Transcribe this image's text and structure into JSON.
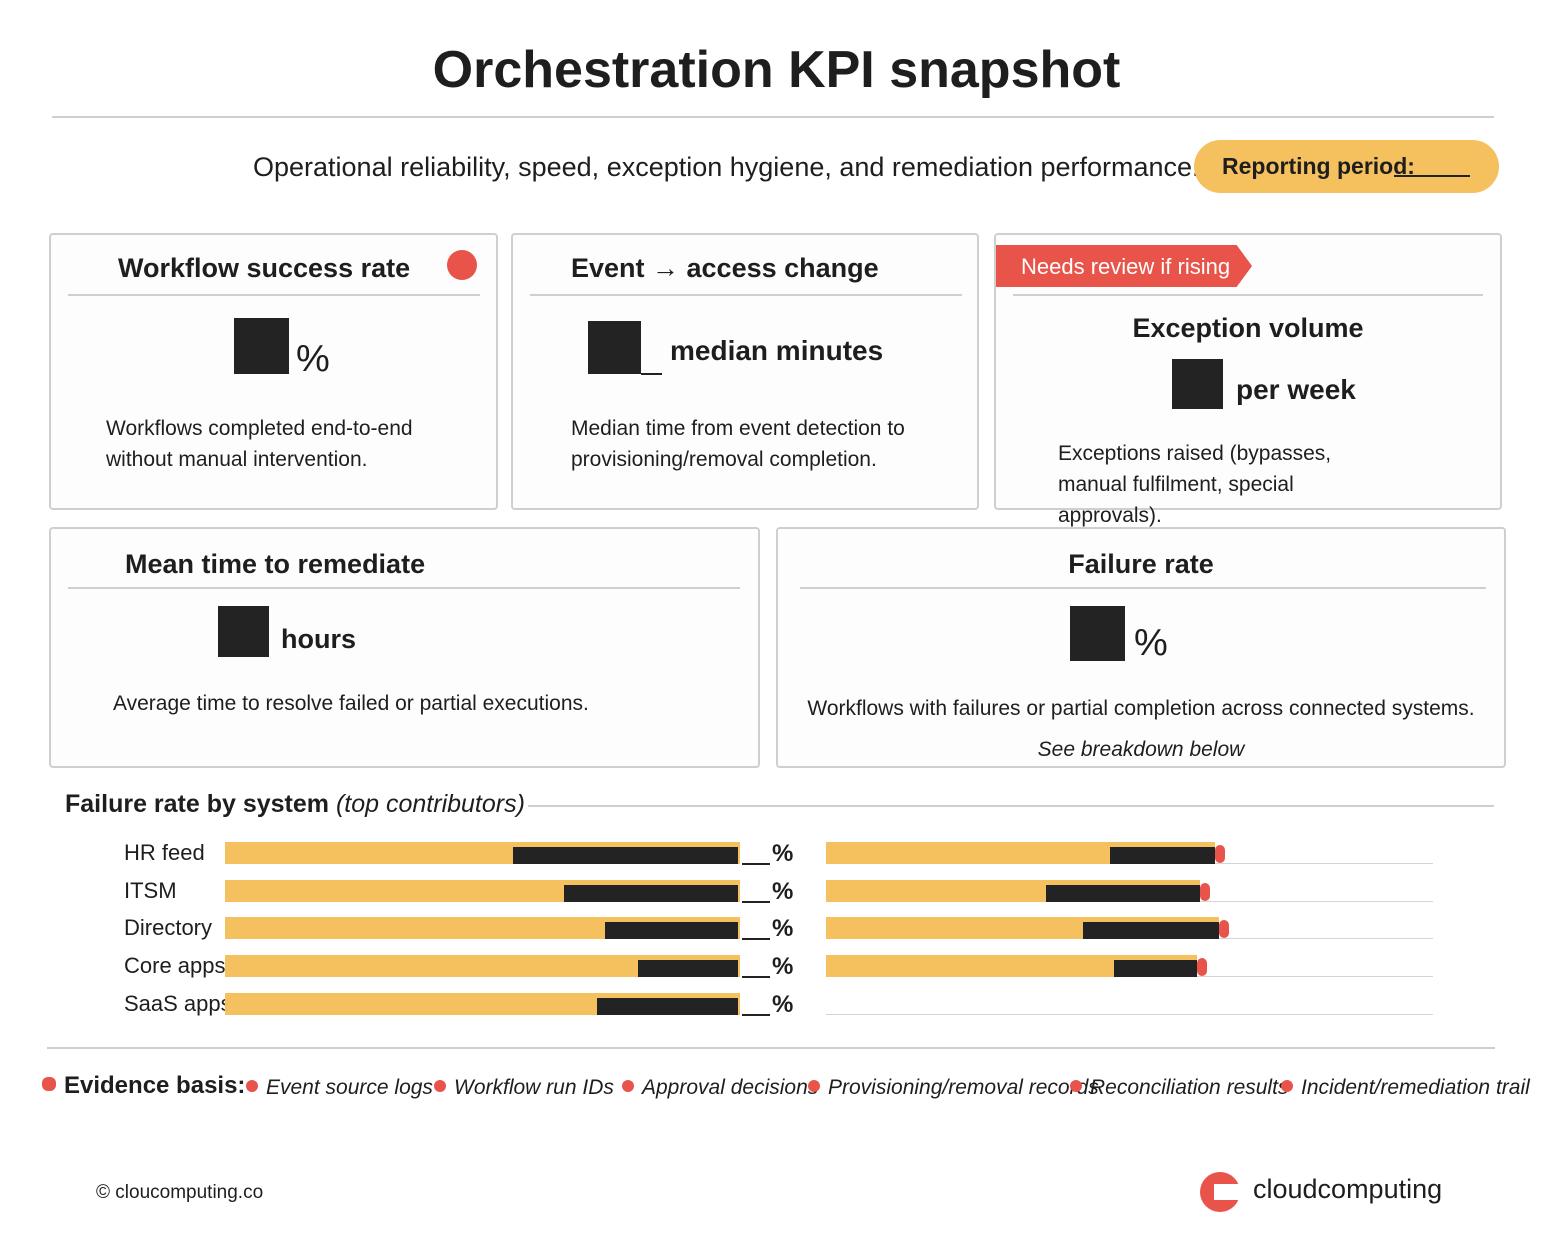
{
  "header": {
    "title": "Orchestration KPI snapshot",
    "subtitle": "Operational reliability, speed, exception hygiene, and remediation performance.",
    "period_label": "Reporting period:"
  },
  "cards": [
    {
      "title": "Workflow success rate",
      "unit": "%",
      "description": "Workflows completed end-to-end without manual intervention."
    },
    {
      "title": "Event → access change",
      "unit": "median minutes",
      "description": "Median time from event detection to provisioning/removal completion."
    },
    {
      "badge": "Needs review if rising",
      "title": "Exception volume",
      "unit": "per week",
      "description": "Exceptions raised (bypasses, manual fulfilment, special approvals)."
    },
    {
      "title": "Mean time to remediate",
      "unit": "hours",
      "description": "Average time to resolve failed or partial executions."
    },
    {
      "title": "Failure rate",
      "unit": "%",
      "description": "Workflows with failures or partial completion across connected systems.",
      "note": "See breakdown below"
    }
  ],
  "breakdown": {
    "title": "Failure rate by system",
    "title_note": "(top contributors)",
    "systems": [
      "HR feed",
      "ITSM",
      "Directory",
      "Core apps",
      "SaaS apps"
    ],
    "unit": "%"
  },
  "evidence": {
    "label": "Evidence basis:",
    "items": [
      "Event source logs",
      "Workflow run IDs",
      "Approval decisions",
      "Provisioning/removal records",
      "Reconciliation results",
      "Incident/remediation trail"
    ]
  },
  "footer": {
    "copyright": "© cloucomputing.co",
    "brand": "cloudcomputing"
  }
}
